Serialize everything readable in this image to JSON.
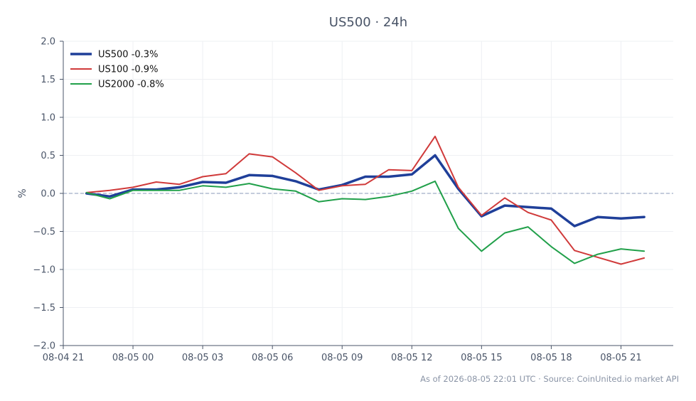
{
  "chart_data": {
    "type": "line",
    "title": "US500 · 24h",
    "ylabel": "%",
    "xlabel": "",
    "ylim": [
      -2.0,
      2.0
    ],
    "yticks": [
      2.0,
      1.5,
      1.0,
      0.5,
      0.0,
      -0.5,
      -1.0,
      -1.5,
      -2.0
    ],
    "ytick_labels": [
      "2.0",
      "1.5",
      "1.0",
      "0.5",
      "0.0",
      "−0.5",
      "−1.0",
      "−1.5",
      "−2.0"
    ],
    "xlim": [
      "08-04 21:00",
      "08-05 23:15"
    ],
    "xticks": [
      "08-04 21",
      "08-05 00",
      "08-05 03",
      "08-05 06",
      "08-05 09",
      "08-05 12",
      "08-05 15",
      "08-05 18",
      "08-05 21"
    ],
    "x": [
      "08-04 22:00",
      "08-04 23:00",
      "08-05 00:00",
      "08-05 01:00",
      "08-05 02:00",
      "08-05 03:00",
      "08-05 04:00",
      "08-05 05:00",
      "08-05 06:00",
      "08-05 07:00",
      "08-05 08:00",
      "08-05 09:00",
      "08-05 10:00",
      "08-05 11:00",
      "08-05 12:00",
      "08-05 13:00",
      "08-05 14:00",
      "08-05 15:00",
      "08-05 16:00",
      "08-05 17:00",
      "08-05 18:00",
      "08-05 19:00",
      "08-05 20:00",
      "08-05 21:00",
      "08-05 22:00"
    ],
    "series": [
      {
        "name": "US500 -0.3%",
        "color": "#1f3f99",
        "values": [
          0.0,
          -0.04,
          0.05,
          0.05,
          0.08,
          0.15,
          0.14,
          0.24,
          0.23,
          0.16,
          0.05,
          0.11,
          0.22,
          0.22,
          0.25,
          0.5,
          0.06,
          -0.3,
          -0.16,
          -0.18,
          -0.2,
          -0.43,
          -0.31,
          -0.33,
          -0.31
        ]
      },
      {
        "name": "US100 -0.9%",
        "color": "#d03a3a",
        "values": [
          0.01,
          0.04,
          0.08,
          0.15,
          0.12,
          0.22,
          0.26,
          0.52,
          0.48,
          0.27,
          0.04,
          0.1,
          0.12,
          0.31,
          0.3,
          0.75,
          0.08,
          -0.29,
          -0.06,
          -0.25,
          -0.35,
          -0.75,
          -0.84,
          -0.93,
          -0.85
        ]
      },
      {
        "name": "US2000 -0.8%",
        "color": "#21a04a",
        "values": [
          0.01,
          -0.07,
          0.04,
          0.04,
          0.04,
          0.1,
          0.08,
          0.13,
          0.06,
          0.03,
          -0.11,
          -0.07,
          -0.08,
          -0.04,
          0.03,
          0.16,
          -0.46,
          -0.76,
          -0.52,
          -0.44,
          -0.7,
          -0.92,
          -0.8,
          -0.73,
          -0.76
        ]
      }
    ],
    "reference_line": 0.0,
    "grid": true,
    "legend": "top-left"
  },
  "footer": "As of 2026-08-05 22:01 UTC · Source: CoinUnited.io market API",
  "colors": {
    "axis": "#4a5568",
    "grid": "#eef0f3",
    "reference": "#8a9ab8"
  }
}
